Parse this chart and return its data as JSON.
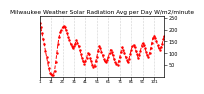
{
  "title": "Milwaukee Weather Solar Radiation Avg per Day W/m2/minute",
  "y_values": [
    230,
    210,
    185,
    160,
    140,
    110,
    85,
    60,
    35,
    15,
    10,
    5,
    8,
    25,
    60,
    100,
    140,
    170,
    190,
    200,
    210,
    215,
    210,
    200,
    185,
    170,
    155,
    140,
    130,
    120,
    130,
    140,
    155,
    145,
    130,
    115,
    95,
    80,
    65,
    55,
    65,
    80,
    100,
    95,
    80,
    65,
    50,
    40,
    45,
    65,
    85,
    110,
    130,
    120,
    105,
    90,
    75,
    65,
    60,
    70,
    85,
    100,
    115,
    105,
    90,
    75,
    60,
    55,
    50,
    65,
    85,
    105,
    125,
    115,
    100,
    85,
    70,
    60,
    75,
    95,
    115,
    130,
    135,
    125,
    110,
    95,
    80,
    90,
    110,
    130,
    145,
    135,
    120,
    105,
    90,
    85,
    100,
    120,
    145,
    165,
    175,
    165,
    150,
    135,
    120,
    115,
    125,
    140,
    160,
    175
  ],
  "line_color": "#ff0000",
  "line_style": "--",
  "line_width": 0.7,
  "marker": ".",
  "marker_size": 1.5,
  "background_color": "#ffffff",
  "grid_color": "#aaaaaa",
  "ylim": [
    0,
    260
  ],
  "ytick_right": true,
  "yticks": [
    50,
    100,
    150,
    200,
    250
  ],
  "ylabel_fontsize": 3.5,
  "xlabel_fontsize": 3.0,
  "title_fontsize": 4.2,
  "n_points": 110
}
